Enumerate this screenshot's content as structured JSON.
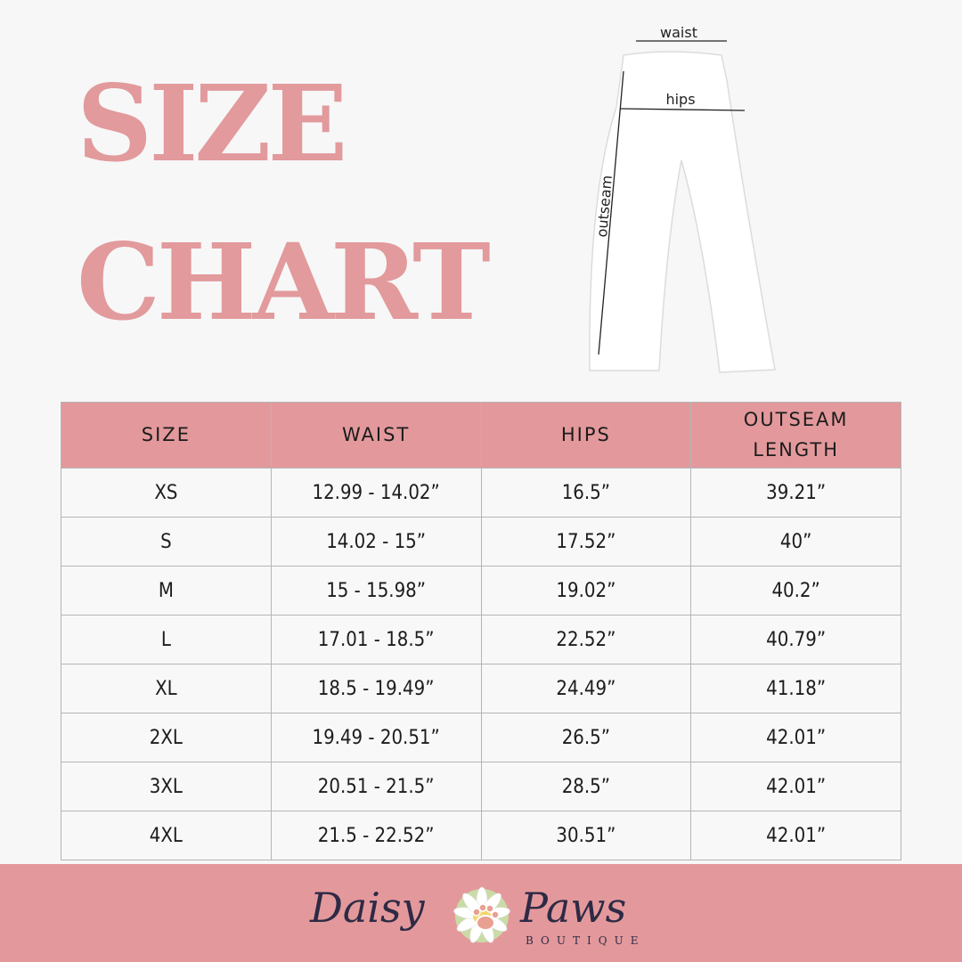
{
  "title": {
    "line1": "SIZE",
    "line2": "CHART"
  },
  "diagram": {
    "waist": "waist",
    "hips": "hips",
    "outseam": "outseam"
  },
  "table": {
    "headers": [
      "SIZE",
      "WAIST",
      "HIPS",
      "OUTSEAM LENGTH"
    ],
    "rows": [
      [
        "XS",
        "12.99 - 14.02”",
        "16.5”",
        "39.21”"
      ],
      [
        "S",
        "14.02 - 15”",
        "17.52”",
        "40”"
      ],
      [
        "M",
        "15 - 15.98”",
        "19.02”",
        "40.2”"
      ],
      [
        "L",
        "17.01 - 18.5”",
        "22.52”",
        "40.79”"
      ],
      [
        "XL",
        "18.5 - 19.49”",
        "24.49”",
        "41.18”"
      ],
      [
        "2XL",
        "19.49 - 20.51”",
        "26.5”",
        "42.01”"
      ],
      [
        "3XL",
        "20.51 - 21.5”",
        "28.5”",
        "42.01”"
      ],
      [
        "4XL",
        "21.5 - 22.52”",
        "30.51”",
        "42.01”"
      ]
    ]
  },
  "footer": {
    "brand_left": "Daisy",
    "brand_right": "Paws",
    "brand_sub": "BOUTIQUE"
  },
  "colors": {
    "accent": "#e3999c",
    "title": "#e29a9c",
    "background": "#f7f7f7",
    "logo_text": "#2e2a45"
  }
}
